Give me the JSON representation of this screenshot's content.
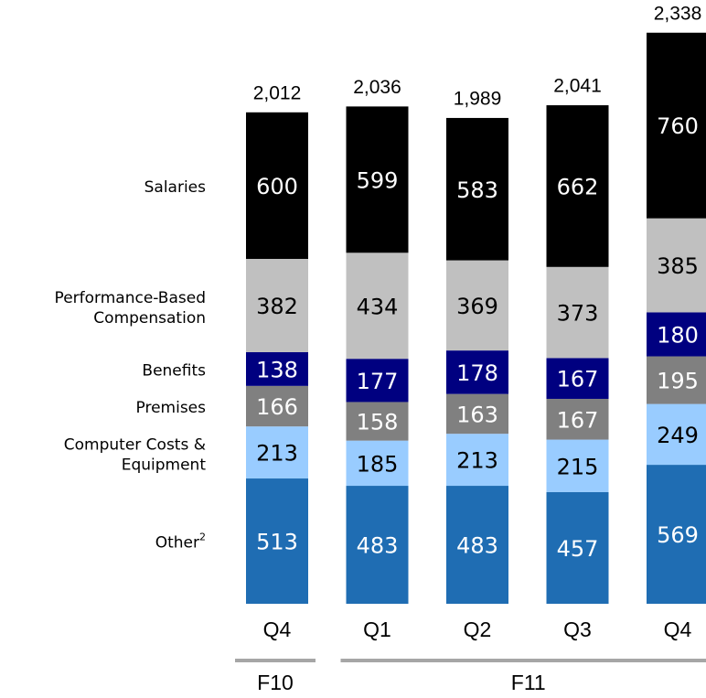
{
  "chart_data": {
    "type": "stacked_bar",
    "categories": [
      "Q4",
      "Q1",
      "Q2",
      "Q3",
      "Q4"
    ],
    "category_groups": [
      {
        "label": "F10",
        "count": 1
      },
      {
        "label": "F11",
        "count": 4
      }
    ],
    "series": [
      {
        "name": "Other²",
        "color": "#1f6db3",
        "label_color": "#ffffff",
        "values": [
          513,
          483,
          483,
          457,
          569
        ]
      },
      {
        "name": "Computer Costs & Equipment",
        "color": "#99ccff",
        "label_color": "#000000",
        "values": [
          213,
          185,
          213,
          215,
          249
        ]
      },
      {
        "name": "Premises",
        "color": "#808080",
        "label_color": "#ffffff",
        "values": [
          166,
          158,
          163,
          167,
          195
        ]
      },
      {
        "name": "Benefits",
        "color": "#000080",
        "label_color": "#ffffff",
        "values": [
          138,
          177,
          178,
          167,
          180
        ]
      },
      {
        "name": "Performance-Based Compensation",
        "color": "#c0c0c0",
        "label_color": "#000000",
        "values": [
          382,
          434,
          369,
          373,
          385
        ]
      },
      {
        "name": "Salaries",
        "color": "#000000",
        "label_color": "#ffffff",
        "values": [
          600,
          599,
          583,
          662,
          760
        ]
      }
    ],
    "totals": [
      2012,
      2036,
      1989,
      2041,
      2338
    ],
    "total_labels": [
      "2,012",
      "2,036",
      "1,989",
      "2,041",
      "2,338"
    ]
  }
}
